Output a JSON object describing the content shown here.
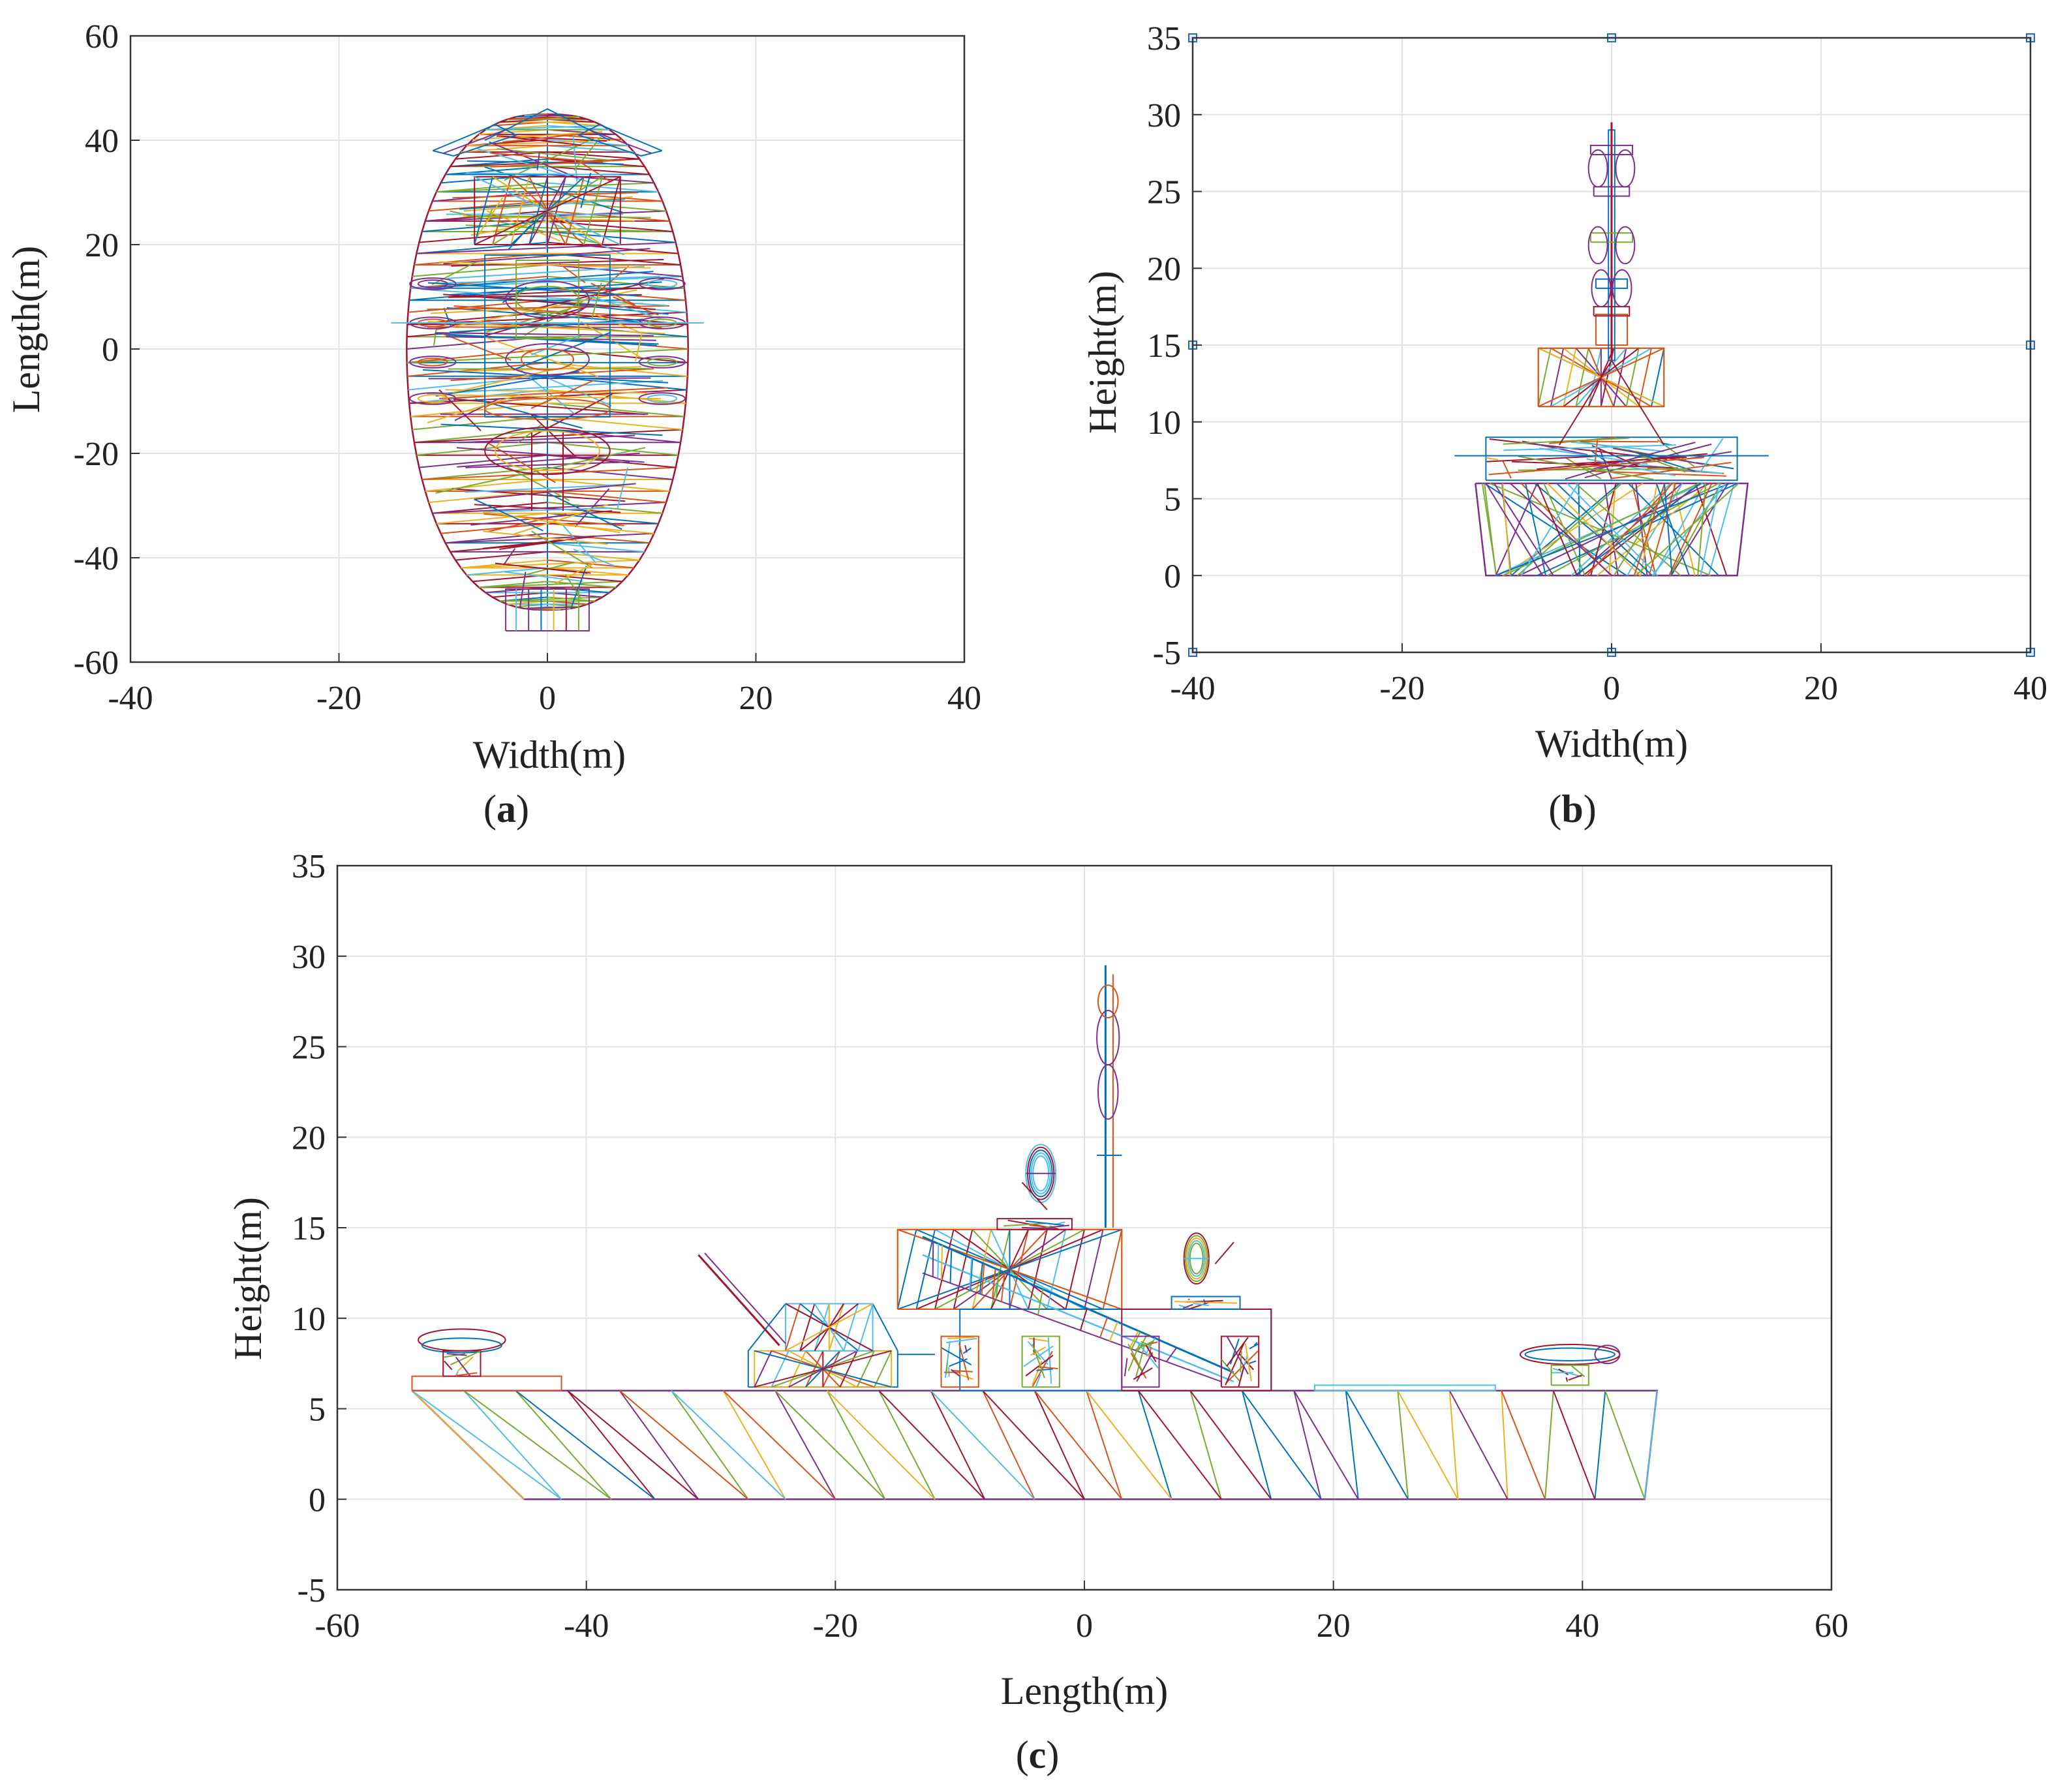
{
  "figure": {
    "panels": [
      {
        "id": "a",
        "caption_open": "(",
        "caption_letter": "a",
        "caption_close": ")",
        "xlabel": "Width(m)",
        "ylabel": "Length(m)",
        "xlim": [
          -40,
          40
        ],
        "ylim": [
          -60,
          60
        ],
        "xticks": [
          -40,
          -20,
          0,
          20,
          40
        ],
        "yticks": [
          -60,
          -40,
          -20,
          0,
          20,
          40,
          60
        ],
        "grid": true,
        "view": "top"
      },
      {
        "id": "b",
        "caption_open": "(",
        "caption_letter": "b",
        "caption_close": ")",
        "xlabel": "Width(m)",
        "ylabel": "Height(m)",
        "xlim": [
          -40,
          40
        ],
        "ylim": [
          -5,
          35
        ],
        "xticks": [
          -40,
          -20,
          0,
          20,
          40
        ],
        "yticks": [
          -5,
          0,
          5,
          10,
          15,
          20,
          25,
          30,
          35
        ],
        "grid": true,
        "view": "front"
      },
      {
        "id": "c",
        "caption_open": "(",
        "caption_letter": "c",
        "caption_close": ")",
        "xlabel": "Length(m)",
        "ylabel": "Height(m)",
        "xlim": [
          -60,
          60
        ],
        "ylim": [
          -5,
          35
        ],
        "xticks": [
          -60,
          -40,
          -20,
          0,
          20,
          40,
          60
        ],
        "yticks": [
          -5,
          0,
          5,
          10,
          15,
          20,
          25,
          30,
          35
        ],
        "grid": true,
        "view": "side"
      }
    ],
    "mesh_colors": [
      "#0072BD",
      "#D95319",
      "#EDB120",
      "#7E2F8E",
      "#77AC30",
      "#4DBEEE",
      "#A2142F"
    ]
  }
}
